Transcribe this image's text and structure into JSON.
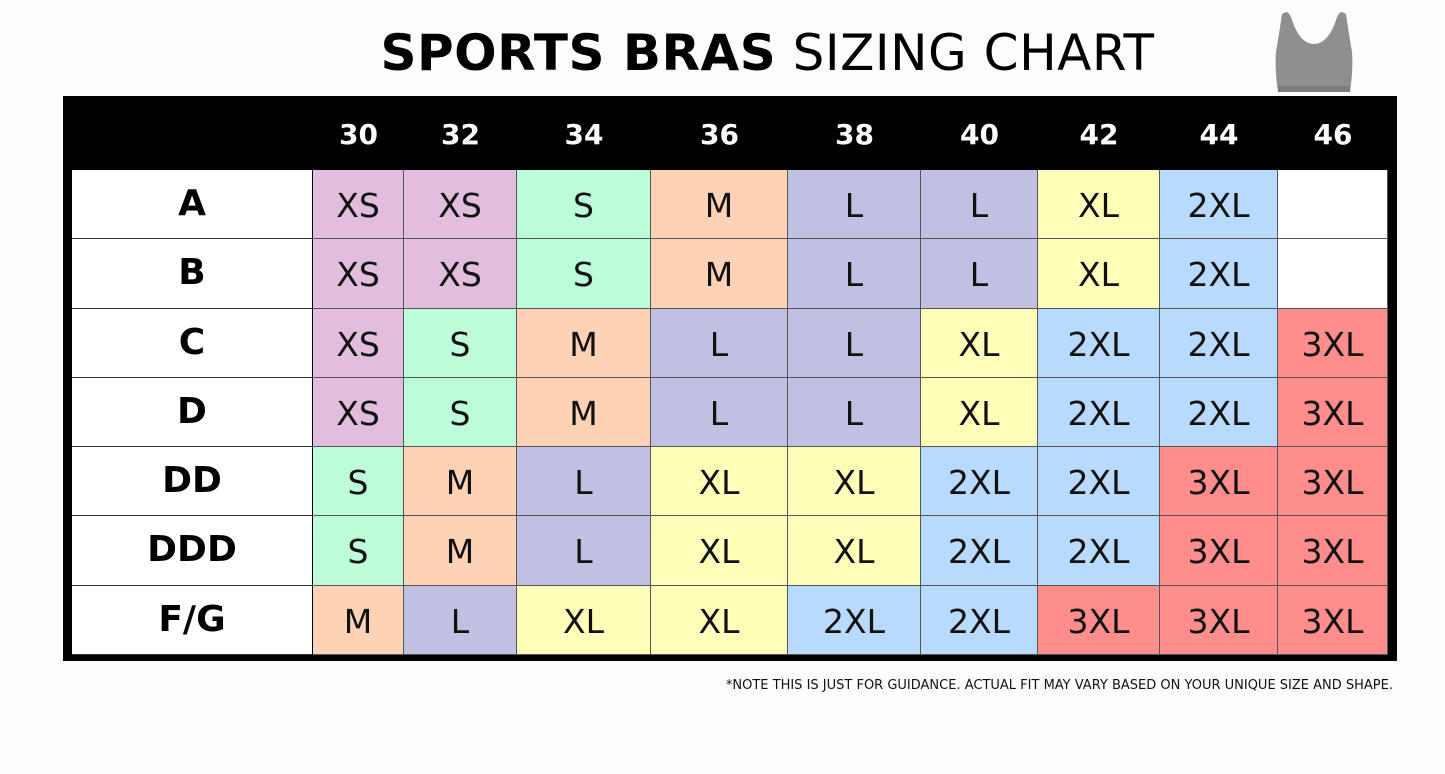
{
  "title": {
    "bold": "SPORTS BRAS",
    "light": "SIZING CHART"
  },
  "image_icon": "sports-bra-image",
  "note": "*NOTE THIS IS JUST FOR GUIDANCE. ACTUAL FIT MAY VARY BASED ON YOUR UNIQUE SIZE AND SHAPE.",
  "colors": {
    "XS": "#e2bddd",
    "S": "#bdfdd9",
    "M": "#fdd2b5",
    "L": "#c1c0e2",
    "XL": "#ffffb9",
    "2XL": "#b8dafd",
    "3XL": "#fe8d8b",
    "empty": "#ffffff"
  },
  "chart_data": {
    "type": "table",
    "title": "SPORTS BRAS SIZING CHART",
    "columns": [
      "30",
      "32",
      "34",
      "36",
      "38",
      "40",
      "42",
      "44",
      "46"
    ],
    "rows": [
      {
        "label": "A",
        "values": [
          "XS",
          "XS",
          "S",
          "M",
          "L",
          "L",
          "XL",
          "2XL",
          ""
        ]
      },
      {
        "label": "B",
        "values": [
          "XS",
          "XS",
          "S",
          "M",
          "L",
          "L",
          "XL",
          "2XL",
          ""
        ]
      },
      {
        "label": "C",
        "values": [
          "XS",
          "S",
          "M",
          "L",
          "L",
          "XL",
          "2XL",
          "2XL",
          "3XL"
        ]
      },
      {
        "label": "D",
        "values": [
          "XS",
          "S",
          "M",
          "L",
          "L",
          "XL",
          "2XL",
          "2XL",
          "3XL"
        ]
      },
      {
        "label": "DD",
        "values": [
          "S",
          "M",
          "L",
          "XL",
          "XL",
          "2XL",
          "2XL",
          "3XL",
          "3XL"
        ]
      },
      {
        "label": "DDD",
        "values": [
          "S",
          "M",
          "L",
          "XL",
          "XL",
          "2XL",
          "2XL",
          "3XL",
          "3XL"
        ]
      },
      {
        "label": "F/G",
        "values": [
          "M",
          "L",
          "XL",
          "XL",
          "2XL",
          "2XL",
          "3XL",
          "3XL",
          "3XL"
        ]
      }
    ]
  }
}
